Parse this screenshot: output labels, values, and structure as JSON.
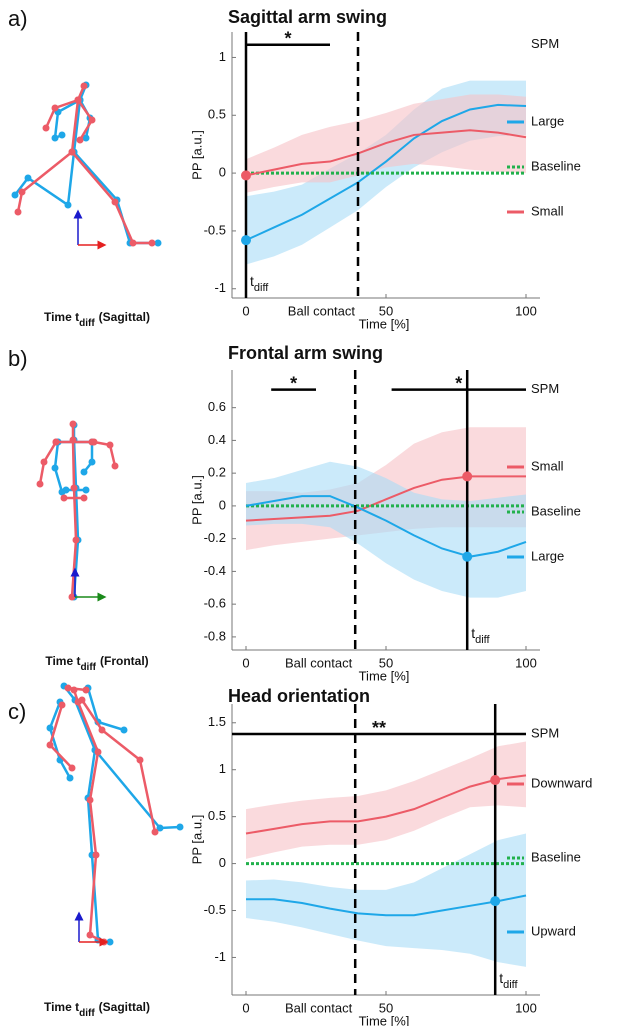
{
  "chart_data": [
    {
      "type": "line",
      "panel_label": "a)",
      "title": "Sagittal arm swing",
      "ylabel": "PP [a.u.]",
      "xlabel": "Time [%]",
      "x": [
        0,
        10,
        20,
        30,
        40,
        50,
        60,
        70,
        80,
        90,
        100
      ],
      "xlim": [
        -5,
        105
      ],
      "ylim": [
        -1.08,
        1.22
      ],
      "xticks": [
        0,
        50,
        100
      ],
      "yticks": [
        -1,
        -0.5,
        0,
        0.5,
        1
      ],
      "series": [
        {
          "name": "Large",
          "color": "#1ea7e8",
          "band_color": "#a9dcf6",
          "linestyle": "solid",
          "values": [
            -0.58,
            -0.47,
            -0.36,
            -0.22,
            -0.08,
            0.1,
            0.3,
            0.45,
            0.55,
            0.59,
            0.58
          ],
          "lower": [
            -0.79,
            -0.72,
            -0.62,
            -0.47,
            -0.32,
            -0.12,
            0.05,
            0.18,
            0.28,
            0.32,
            0.33
          ],
          "upper": [
            -0.2,
            -0.16,
            -0.1,
            0.04,
            0.17,
            0.33,
            0.55,
            0.73,
            0.8,
            0.8,
            0.8
          ],
          "tdiff_value": -0.58
        },
        {
          "name": "Baseline",
          "color": "#22b14c",
          "linestyle": "dotted",
          "values": [
            0,
            0,
            0,
            0,
            0,
            0,
            0,
            0,
            0,
            0,
            0
          ]
        },
        {
          "name": "Small",
          "color": "#ec5b67",
          "band_color": "#f7c1c6",
          "linestyle": "solid",
          "values": [
            -0.02,
            0.03,
            0.08,
            0.1,
            0.17,
            0.26,
            0.33,
            0.35,
            0.37,
            0.35,
            0.31
          ],
          "lower": [
            -0.17,
            -0.12,
            -0.08,
            -0.08,
            -0.02,
            0.05,
            0.08,
            0.06,
            0.03,
            0.01,
            0.0
          ],
          "upper": [
            0.12,
            0.22,
            0.33,
            0.4,
            0.45,
            0.52,
            0.6,
            0.64,
            0.68,
            0.68,
            0.66
          ],
          "tdiff_value": -0.02
        }
      ],
      "tdiff": 0,
      "tdiff_label": [
        "t",
        "diff"
      ],
      "event": {
        "x": 40,
        "label": "Ball contact"
      },
      "spm": {
        "label": "SPM",
        "clusters": [
          {
            "x": [
              0,
              30
            ],
            "y": 1.11,
            "label": "*"
          }
        ]
      },
      "caption": [
        "Time t",
        "diff",
        "(Sagittal)"
      ]
    },
    {
      "type": "line",
      "panel_label": "b)",
      "title": "Frontal arm swing",
      "ylabel": "PP [a.u.]",
      "xlabel": "Time [%]",
      "x": [
        0,
        10,
        20,
        30,
        40,
        50,
        60,
        70,
        80,
        90,
        100
      ],
      "xlim": [
        -5,
        105
      ],
      "ylim": [
        -0.88,
        0.83
      ],
      "xticks": [
        0,
        50,
        100
      ],
      "yticks": [
        -0.8,
        -0.6,
        -0.4,
        -0.2,
        0,
        0.2,
        0.4,
        0.6
      ],
      "series": [
        {
          "name": "Small",
          "color": "#ec5b67",
          "band_color": "#f7c1c6",
          "linestyle": "solid",
          "values": [
            -0.09,
            -0.08,
            -0.07,
            -0.06,
            -0.03,
            0.04,
            0.11,
            0.16,
            0.18,
            0.18,
            0.18
          ],
          "lower": [
            -0.27,
            -0.24,
            -0.22,
            -0.2,
            -0.18,
            -0.16,
            -0.14,
            -0.13,
            -0.13,
            -0.13,
            -0.13
          ],
          "upper": [
            0.09,
            0.09,
            0.08,
            0.1,
            0.14,
            0.25,
            0.38,
            0.45,
            0.48,
            0.48,
            0.48
          ],
          "tdiff_value": 0.18
        },
        {
          "name": "Baseline",
          "color": "#22b14c",
          "linestyle": "dotted",
          "values": [
            0,
            0,
            0,
            0,
            0,
            0,
            0,
            0,
            0,
            0,
            0
          ]
        },
        {
          "name": "Large",
          "color": "#1ea7e8",
          "band_color": "#a9dcf6",
          "linestyle": "solid",
          "values": [
            0.0,
            0.03,
            0.06,
            0.06,
            -0.01,
            -0.09,
            -0.18,
            -0.26,
            -0.31,
            -0.28,
            -0.22
          ],
          "lower": [
            -0.12,
            -0.11,
            -0.11,
            -0.13,
            -0.23,
            -0.35,
            -0.45,
            -0.52,
            -0.56,
            -0.56,
            -0.52
          ],
          "upper": [
            0.14,
            0.17,
            0.22,
            0.27,
            0.24,
            0.17,
            0.08,
            0.04,
            0.03,
            0.05,
            0.07
          ],
          "tdiff_value": -0.31
        }
      ],
      "tdiff": 79,
      "tdiff_label": [
        "t",
        "diff"
      ],
      "event": {
        "x": 39,
        "label": "Ball contact"
      },
      "spm": {
        "label": "SPM",
        "clusters": [
          {
            "x": [
              9,
              25
            ],
            "y": 0.71,
            "label": "*"
          },
          {
            "x": [
              52,
              100
            ],
            "y": 0.71,
            "label": "*"
          }
        ]
      },
      "caption": [
        "Time t",
        "diff",
        "(Frontal)"
      ]
    },
    {
      "type": "line",
      "panel_label": "c)",
      "title": "Head orientation",
      "ylabel": "PP [a.u.]",
      "xlabel": "Time [%]",
      "x": [
        0,
        10,
        20,
        30,
        40,
        50,
        60,
        70,
        80,
        90,
        100
      ],
      "xlim": [
        -5,
        105
      ],
      "ylim": [
        -1.4,
        1.7
      ],
      "xticks": [
        0,
        50,
        100
      ],
      "yticks": [
        -1,
        -0.5,
        0,
        0.5,
        1,
        1.5
      ],
      "series": [
        {
          "name": "Downward",
          "color": "#ec5b67",
          "band_color": "#f7c1c6",
          "linestyle": "solid",
          "values": [
            0.32,
            0.37,
            0.42,
            0.45,
            0.45,
            0.5,
            0.58,
            0.7,
            0.82,
            0.9,
            0.94
          ],
          "lower": [
            0.05,
            0.12,
            0.18,
            0.2,
            0.2,
            0.25,
            0.35,
            0.48,
            0.6,
            0.62,
            0.6
          ],
          "upper": [
            0.58,
            0.63,
            0.67,
            0.7,
            0.72,
            0.78,
            0.88,
            1.0,
            1.12,
            1.25,
            1.3
          ],
          "tdiff_value": 0.89
        },
        {
          "name": "Baseline",
          "color": "#22b14c",
          "linestyle": "dotted",
          "values": [
            0,
            0,
            0,
            0,
            0,
            0,
            0,
            0,
            0,
            0,
            0
          ]
        },
        {
          "name": "Upward",
          "color": "#1ea7e8",
          "band_color": "#a9dcf6",
          "linestyle": "solid",
          "values": [
            -0.38,
            -0.38,
            -0.42,
            -0.48,
            -0.53,
            -0.55,
            -0.55,
            -0.5,
            -0.45,
            -0.4,
            -0.34
          ],
          "lower": [
            -0.58,
            -0.62,
            -0.68,
            -0.75,
            -0.82,
            -0.88,
            -0.9,
            -0.92,
            -0.96,
            -1.05,
            -1.1
          ],
          "upper": [
            -0.18,
            -0.17,
            -0.2,
            -0.25,
            -0.28,
            -0.28,
            -0.2,
            -0.05,
            0.1,
            0.25,
            0.32
          ],
          "tdiff_value": -0.4
        }
      ],
      "tdiff": 89,
      "tdiff_label": [
        "t",
        "diff"
      ],
      "event": {
        "x": 39,
        "label": "Ball contact"
      },
      "spm": {
        "label": "SPM",
        "clusters": [
          {
            "x": [
              -5,
              100
            ],
            "y": 1.38,
            "label": "**"
          }
        ]
      },
      "caption": [
        "Time t",
        "diff",
        "(Sagittal)"
      ]
    }
  ]
}
